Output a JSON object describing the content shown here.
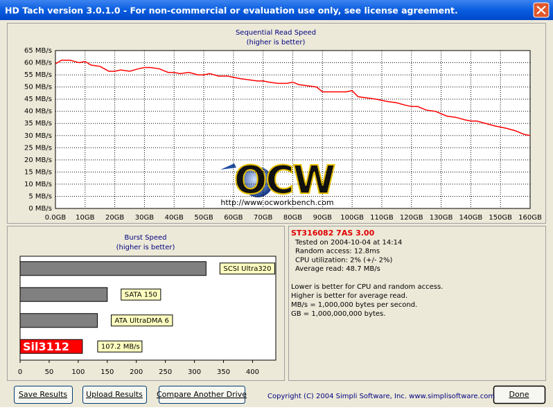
{
  "window": {
    "title": "HD Tach version 3.0.1.0  - For non-commercial or evaluation use only, see license agreement."
  },
  "chart_data": [
    {
      "type": "line",
      "title": "Sequential Read Speed",
      "subtitle": "(higher is better)",
      "color": "#ff0000",
      "grid": true,
      "x": [
        0,
        2,
        5,
        8,
        10,
        12,
        15,
        18,
        20,
        22,
        25,
        28,
        30,
        32,
        35,
        38,
        40,
        42,
        45,
        48,
        50,
        52,
        55,
        58,
        60,
        62,
        65,
        68,
        70,
        72,
        75,
        78,
        80,
        82,
        85,
        88,
        90,
        92,
        95,
        98,
        100,
        102,
        105,
        108,
        110,
        112,
        115,
        118,
        120,
        122,
        125,
        128,
        130,
        132,
        135,
        138,
        140,
        142,
        145,
        148,
        150,
        152,
        155,
        158,
        160
      ],
      "values": [
        59.5,
        61,
        61,
        60,
        60.5,
        59,
        58.5,
        56.5,
        56.5,
        57,
        56.5,
        57.5,
        58,
        58,
        57.5,
        56,
        56,
        55.5,
        56,
        55,
        55,
        55.5,
        54.5,
        54.5,
        54,
        53.5,
        53,
        52.5,
        52.5,
        52,
        51.5,
        51.5,
        52,
        51,
        50.5,
        50,
        48,
        48,
        48,
        48,
        48.5,
        46,
        45.5,
        45,
        44.5,
        44,
        43.5,
        42.5,
        42,
        42,
        40.5,
        40,
        39,
        38,
        37.5,
        36.5,
        36,
        36,
        35,
        34,
        33.5,
        33,
        32,
        30.5,
        30
      ],
      "xlim": [
        0,
        160
      ],
      "xticks": [
        {
          "value": 0,
          "label": "0.0GB"
        },
        {
          "value": 10,
          "label": "10GB"
        },
        {
          "value": 20,
          "label": "20GB"
        },
        {
          "value": 30,
          "label": "30GB"
        },
        {
          "value": 40,
          "label": "40GB"
        },
        {
          "value": 50,
          "label": "50GB"
        },
        {
          "value": 60,
          "label": "60GB"
        },
        {
          "value": 70,
          "label": "70GB"
        },
        {
          "value": 80,
          "label": "80GB"
        },
        {
          "value": 90,
          "label": "90GB"
        },
        {
          "value": 100,
          "label": "100GB"
        },
        {
          "value": 110,
          "label": "110GB"
        },
        {
          "value": 120,
          "label": "120GB"
        },
        {
          "value": 130,
          "label": "130GB"
        },
        {
          "value": 140,
          "label": "140GB"
        },
        {
          "value": 150,
          "label": "150GB"
        },
        {
          "value": 160,
          "label": "160GB"
        }
      ],
      "ylim": [
        0,
        65
      ],
      "yticks": [
        {
          "value": 0,
          "label": "0 MB/s"
        },
        {
          "value": 5,
          "label": "5 MB/s"
        },
        {
          "value": 10,
          "label": "10 MB/s"
        },
        {
          "value": 15,
          "label": "15 MB/s"
        },
        {
          "value": 20,
          "label": "20 MB/s"
        },
        {
          "value": 25,
          "label": "25 MB/s"
        },
        {
          "value": 30,
          "label": "30 MB/s"
        },
        {
          "value": 35,
          "label": "35 MB/s"
        },
        {
          "value": 40,
          "label": "40 MB/s"
        },
        {
          "value": 45,
          "label": "45 MB/s"
        },
        {
          "value": 50,
          "label": "50 MB/s"
        },
        {
          "value": 55,
          "label": "55 MB/s"
        },
        {
          "value": 60,
          "label": "60 MB/s"
        },
        {
          "value": 65,
          "label": "65 MB/s"
        }
      ]
    },
    {
      "type": "barh",
      "title": "Burst Speed",
      "subtitle": "(higher is better)",
      "categories": [
        "SCSI Ultra320",
        "SATA 150",
        "ATA UltraDMA 6",
        "Sil3112"
      ],
      "values": [
        320,
        150,
        133,
        107.2
      ],
      "value_labels": [
        null,
        null,
        null,
        "107.2 MB/s"
      ],
      "colors": [
        "#808080",
        "#808080",
        "#808080",
        "#ff0000"
      ],
      "xlim": [
        0,
        440
      ],
      "xticks": [
        0,
        50,
        100,
        150,
        200,
        250,
        300,
        350,
        400
      ]
    }
  ],
  "watermark": {
    "logo": "OCW",
    "url": "http://www.ocworkbench.com"
  },
  "info": {
    "drive": "ST316082 7AS 3.00",
    "lines": [
      "Tested on 2004-10-04 at 14:14",
      "Random access: 12.8ms",
      "CPU utilization: 2% (+/- 2%)",
      "Average read: 48.7 MB/s"
    ],
    "notes": [
      "Lower is better for CPU and random access.",
      "Higher is better for average read.",
      "MB/s = 1,000,000 bytes per second.",
      "GB = 1,000,000,000 bytes."
    ]
  },
  "buttons": [
    "Save Results",
    "Upload Results",
    "Compare Another Drive",
    "Done"
  ],
  "copyright": "Copyright (C) 2004 Simpli Software, Inc. www.simplisoftware.com"
}
